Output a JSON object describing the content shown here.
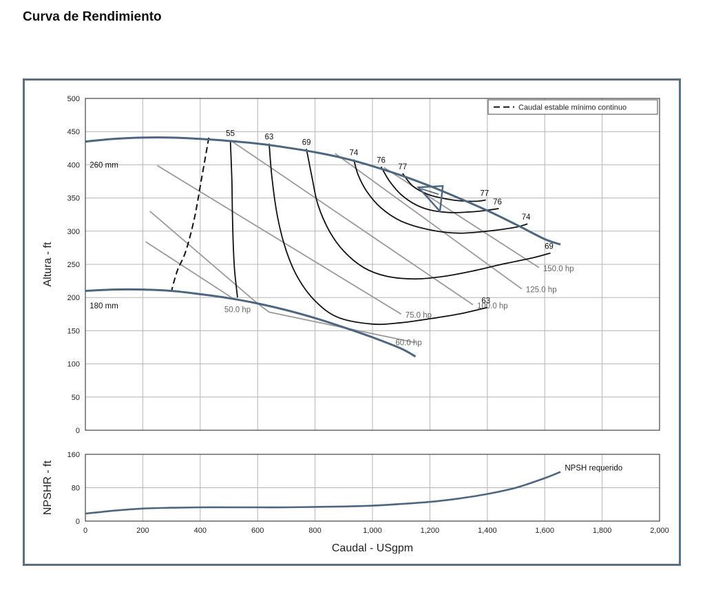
{
  "page_title": "Curva de Rendimiento",
  "chart_data": [
    {
      "type": "line",
      "name": "performance",
      "xlim": [
        0,
        2000
      ],
      "ylim": [
        0,
        500
      ],
      "yticks": [
        0,
        50,
        100,
        150,
        200,
        250,
        300,
        350,
        400,
        450,
        500
      ],
      "ylabel": "Altura - ft",
      "legend": {
        "label": "Caudal estable mínimo continuo",
        "position": "top-right"
      },
      "impellers": [
        {
          "label": "260 mm",
          "points": [
            [
              0,
              435
            ],
            [
              100,
              439
            ],
            [
              200,
              441
            ],
            [
              300,
              441
            ],
            [
              400,
              439
            ],
            [
              500,
              436
            ],
            [
              600,
              432
            ],
            [
              700,
              426
            ],
            [
              800,
              419
            ],
            [
              900,
              410
            ],
            [
              1000,
              398
            ],
            [
              1100,
              384
            ],
            [
              1200,
              368
            ],
            [
              1300,
              350
            ],
            [
              1400,
              331
            ],
            [
              1500,
              310
            ],
            [
              1600,
              288
            ],
            [
              1655,
              280
            ]
          ]
        },
        {
          "label": "180 mm",
          "points": [
            [
              0,
              210
            ],
            [
              100,
              212
            ],
            [
              200,
              212
            ],
            [
              300,
              210
            ],
            [
              400,
              205
            ],
            [
              500,
              199
            ],
            [
              600,
              191
            ],
            [
              700,
              181
            ],
            [
              800,
              169
            ],
            [
              900,
              155
            ],
            [
              1000,
              140
            ],
            [
              1100,
              123
            ],
            [
              1150,
              111
            ]
          ]
        }
      ],
      "efficiency": [
        {
          "label": "55",
          "points": [
            [
              505,
              437
            ],
            [
              510,
              380
            ],
            [
              512,
              330
            ],
            [
              515,
              280
            ],
            [
              520,
              240
            ],
            [
              530,
              200
            ]
          ]
        },
        {
          "label": "63",
          "points": [
            [
              640,
              432
            ],
            [
              650,
              380
            ],
            [
              670,
              320
            ],
            [
              700,
              270
            ],
            [
              740,
              230
            ],
            [
              800,
              195
            ],
            [
              880,
              170
            ],
            [
              1000,
              160
            ],
            [
              1100,
              162
            ],
            [
              1200,
              168
            ],
            [
              1300,
              175
            ],
            [
              1400,
              185
            ]
          ],
          "end_label": "63"
        },
        {
          "label": "69",
          "points": [
            [
              770,
              424
            ],
            [
              790,
              380
            ],
            [
              810,
              340
            ],
            [
              850,
              300
            ],
            [
              900,
              270
            ],
            [
              970,
              245
            ],
            [
              1050,
              232
            ],
            [
              1150,
              228
            ],
            [
              1250,
              232
            ],
            [
              1350,
              240
            ],
            [
              1450,
              250
            ],
            [
              1560,
              260
            ],
            [
              1620,
              267
            ]
          ],
          "end_label": "69"
        },
        {
          "label": "74",
          "points": [
            [
              935,
              408
            ],
            [
              950,
              385
            ],
            [
              980,
              360
            ],
            [
              1030,
              335
            ],
            [
              1100,
              315
            ],
            [
              1200,
              302
            ],
            [
              1300,
              297
            ],
            [
              1400,
              300
            ],
            [
              1500,
              306
            ],
            [
              1540,
              311
            ]
          ],
          "end_label": "74"
        },
        {
          "label": "76",
          "points": [
            [
              1030,
              397
            ],
            [
              1060,
              375
            ],
            [
              1100,
              355
            ],
            [
              1150,
              340
            ],
            [
              1200,
              332
            ],
            [
              1270,
              328
            ],
            [
              1340,
              329
            ],
            [
              1390,
              331
            ],
            [
              1440,
              334
            ]
          ],
          "end_label": "76"
        },
        {
          "label": "77",
          "points": [
            [
              1105,
              387
            ],
            [
              1140,
              368
            ],
            [
              1190,
              356
            ],
            [
              1240,
              350
            ],
            [
              1300,
              346
            ],
            [
              1360,
              345
            ],
            [
              1395,
              347
            ]
          ],
          "end_label": "77"
        }
      ],
      "power": [
        {
          "label": "50.0 hp",
          "points": [
            [
              210,
              284
            ],
            [
              520,
              197
            ]
          ]
        },
        {
          "label": "60.0 hp",
          "points": [
            [
              225,
              330
            ],
            [
              600,
              191
            ],
            [
              640,
              178
            ],
            [
              1150,
              132
            ]
          ]
        },
        {
          "label": "75.0 hp",
          "points": [
            [
              250,
              399
            ],
            [
              1100,
              175
            ]
          ]
        },
        {
          "label": "100.0 hp",
          "points": [
            [
              505,
              437
            ],
            [
              1350,
              189
            ]
          ]
        },
        {
          "label": "125.0 hp",
          "points": [
            [
              870,
              417
            ],
            [
              1520,
              213
            ]
          ]
        },
        {
          "label": "150.0 hp",
          "points": [
            [
              1040,
              396
            ],
            [
              1580,
              245
            ]
          ]
        }
      ],
      "min_flow_line": {
        "points": [
          [
            430,
            441
          ],
          [
            405,
            380
          ],
          [
            380,
            320
          ],
          [
            350,
            270
          ],
          [
            320,
            240
          ],
          [
            300,
            210
          ]
        ]
      },
      "bep_marker": {
        "points": [
          [
            1160,
            366
          ],
          [
            1245,
            368
          ],
          [
            1235,
            330
          ]
        ]
      }
    },
    {
      "type": "line",
      "name": "npshr",
      "xlim": [
        0,
        2000
      ],
      "ylim": [
        0,
        160
      ],
      "yticks": [
        0,
        80,
        160
      ],
      "xticks": [
        0,
        200,
        400,
        600,
        800,
        1000,
        1200,
        1400,
        1600,
        1800,
        2000
      ],
      "xtick_labels": [
        "0",
        "200",
        "400",
        "600",
        "800",
        "1,000",
        "1,200",
        "1,400",
        "1,600",
        "1,800",
        "2,000"
      ],
      "ylabel": "NPSHR - ft",
      "xlabel": "Caudal - USgpm",
      "series": [
        {
          "label": "NPSH requerido",
          "points": [
            [
              0,
              18
            ],
            [
              100,
              25
            ],
            [
              200,
              30
            ],
            [
              300,
              32
            ],
            [
              400,
              33
            ],
            [
              500,
              33
            ],
            [
              600,
              33
            ],
            [
              700,
              33
            ],
            [
              800,
              34
            ],
            [
              900,
              35
            ],
            [
              1000,
              37
            ],
            [
              1100,
              41
            ],
            [
              1200,
              46
            ],
            [
              1300,
              54
            ],
            [
              1400,
              65
            ],
            [
              1500,
              80
            ],
            [
              1600,
              103
            ],
            [
              1655,
              118
            ]
          ]
        }
      ]
    }
  ]
}
